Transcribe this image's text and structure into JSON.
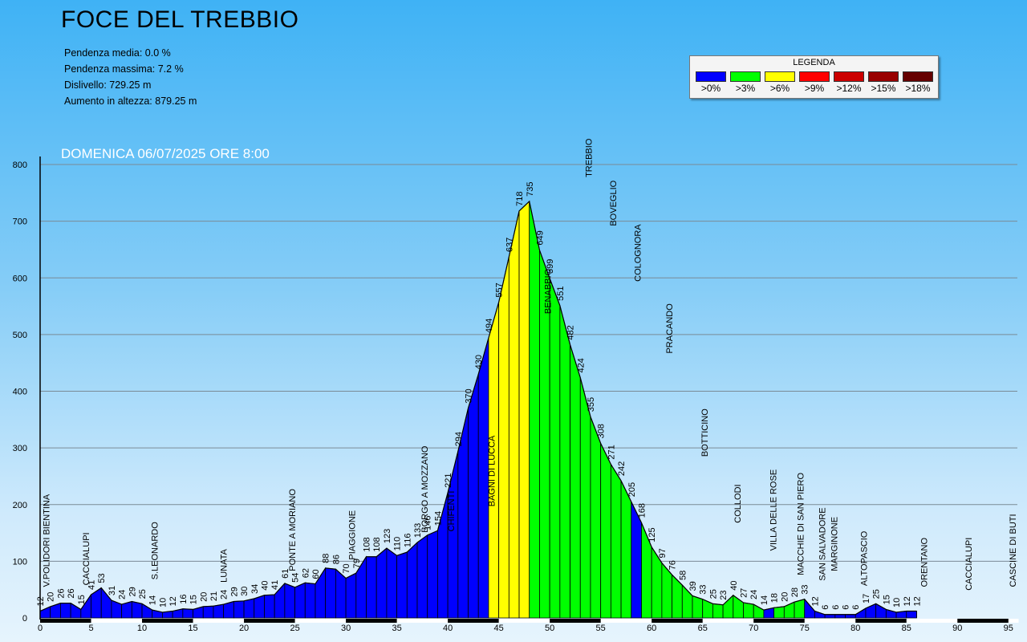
{
  "title": "FOCE DEL TREBBIO",
  "stats": [
    "Pendenza media: 0.0 %",
    "Pendenza massima: 7.2 %",
    "Dislivello: 729.25 m",
    "Aumento in altezza: 879.25 m"
  ],
  "date_label": "DOMENICA 06/07/2025 ORE 8:00",
  "legend": {
    "title": "LEGENDA",
    "items": [
      {
        "label": ">0%",
        "color": "#0000ff"
      },
      {
        "label": ">3%",
        "color": "#00ff00"
      },
      {
        "label": ">6%",
        "color": "#ffff00"
      },
      {
        "label": ">9%",
        "color": "#ff0000"
      },
      {
        "label": ">12%",
        "color": "#cc0000"
      },
      {
        "label": ">15%",
        "color": "#990000"
      },
      {
        "label": ">18%",
        "color": "#660000"
      }
    ]
  },
  "chart_data": {
    "type": "area",
    "xlabel": "",
    "ylabel": "",
    "xlim": [
      0,
      96
    ],
    "ylim": [
      0,
      800
    ],
    "y_ticks": [
      0,
      100,
      200,
      300,
      400,
      500,
      600,
      700,
      800
    ],
    "x_ticks": [
      0,
      5,
      10,
      15,
      20,
      25,
      30,
      35,
      40,
      45,
      50,
      55,
      60,
      65,
      70,
      75,
      80,
      85,
      90,
      95
    ],
    "grid": true,
    "x": [
      0,
      1,
      2,
      3,
      4,
      5,
      6,
      7,
      8,
      9,
      10,
      11,
      12,
      13,
      14,
      15,
      16,
      17,
      18,
      19,
      20,
      21,
      22,
      23,
      24,
      25,
      26,
      27,
      28,
      29,
      30,
      31,
      32,
      33,
      34,
      35,
      36,
      37,
      38,
      39,
      40,
      41,
      42,
      43,
      44,
      45,
      46,
      47,
      48,
      49,
      50,
      51,
      52,
      53,
      54,
      55,
      56,
      57,
      58,
      59,
      60,
      61,
      62,
      63,
      64,
      65,
      66,
      67,
      68,
      69,
      70,
      71,
      72,
      73,
      74,
      75,
      76,
      77,
      78,
      79,
      80,
      81,
      82,
      83,
      84,
      85,
      86,
      87,
      88,
      89,
      90,
      91,
      92,
      93,
      94,
      95,
      96
    ],
    "elevation": [
      12,
      20,
      26,
      26,
      15,
      41,
      53,
      31,
      24,
      29,
      25,
      14,
      10,
      12,
      16,
      15,
      20,
      21,
      24,
      29,
      30,
      34,
      40,
      41,
      61,
      54,
      62,
      60,
      88,
      86,
      70,
      79,
      108,
      108,
      123,
      110,
      116,
      133,
      146,
      154,
      221,
      294,
      370,
      430,
      494,
      557,
      637,
      718,
      735,
      649,
      599,
      551,
      482,
      424,
      355,
      308,
      271,
      242,
      205,
      168,
      125,
      97,
      76,
      58,
      39,
      33,
      25,
      23,
      40,
      27,
      24,
      14,
      18,
      20,
      28,
      33,
      12,
      6,
      6,
      6,
      6,
      17,
      25,
      15,
      10,
      12,
      12
    ],
    "gradient_class": [
      0,
      0,
      0,
      0,
      0,
      0,
      0,
      0,
      0,
      0,
      0,
      0,
      0,
      0,
      0,
      0,
      0,
      0,
      0,
      0,
      0,
      0,
      0,
      0,
      0,
      0,
      0,
      0,
      0,
      0,
      0,
      0,
      0,
      0,
      0,
      0,
      0,
      0,
      0,
      0,
      0,
      0,
      0,
      0,
      2,
      2,
      2,
      2,
      1,
      1,
      1,
      1,
      1,
      1,
      1,
      1,
      1,
      1,
      0,
      1,
      1,
      1,
      1,
      1,
      1,
      1,
      1,
      1,
      1,
      1,
      1,
      0,
      1,
      1,
      1,
      0,
      0,
      0,
      0,
      0,
      0,
      0,
      0,
      0,
      0,
      0,
      0,
      0,
      0,
      0,
      0,
      0,
      0,
      0,
      0,
      0
    ],
    "places": [
      {
        "name": "V.POLIDORI BIENTINA",
        "x": 0.6,
        "elev": 12
      },
      {
        "name": "CACCIALUPI",
        "x": 4.5,
        "elev": 15
      },
      {
        "name": "S.LEONARDO",
        "x": 11.2,
        "elev": 25
      },
      {
        "name": "LUNATA",
        "x": 18.0,
        "elev": 20
      },
      {
        "name": "PONTE A MORIANO",
        "x": 24.7,
        "elev": 40
      },
      {
        "name": "PIAGGIONE",
        "x": 30.6,
        "elev": 60
      },
      {
        "name": "BORGO A MOZZANO",
        "x": 37.7,
        "elev": 108
      },
      {
        "name": "CHIFENTI",
        "x": 40.3,
        "elev": 110
      },
      {
        "name": "BAGNI DI LUCCA",
        "x": 44.3,
        "elev": 154
      },
      {
        "name": "BENABBIO",
        "x": 49.8,
        "elev": 494
      },
      {
        "name": "TREBBIO",
        "x": 53.8,
        "elev": 735
      },
      {
        "name": "BOVEGLIO",
        "x": 56.2,
        "elev": 649
      },
      {
        "name": "COLOGNORA",
        "x": 58.6,
        "elev": 551
      },
      {
        "name": "PRACANDO",
        "x": 61.7,
        "elev": 424
      },
      {
        "name": "BOTTICINO",
        "x": 65.2,
        "elev": 242
      },
      {
        "name": "COLLODI",
        "x": 68.4,
        "elev": 125
      },
      {
        "name": "VILLA DELLE ROSE",
        "x": 71.9,
        "elev": 76
      },
      {
        "name": "MACCHIE DI SAN PIERO",
        "x": 74.6,
        "elev": 33
      },
      {
        "name": "SAN SALVADORE",
        "x": 76.7,
        "elev": 23
      },
      {
        "name": "MARGINONE",
        "x": 77.9,
        "elev": 40
      },
      {
        "name": "ALTOPASCIO",
        "x": 80.8,
        "elev": 14
      },
      {
        "name": "ORENTANO",
        "x": 86.7,
        "elev": 12
      },
      {
        "name": "CACCIALUPI",
        "x": 91.1,
        "elev": 6
      },
      {
        "name": "CASCINE DI BUTI",
        "x": 95.4,
        "elev": 12
      }
    ]
  }
}
